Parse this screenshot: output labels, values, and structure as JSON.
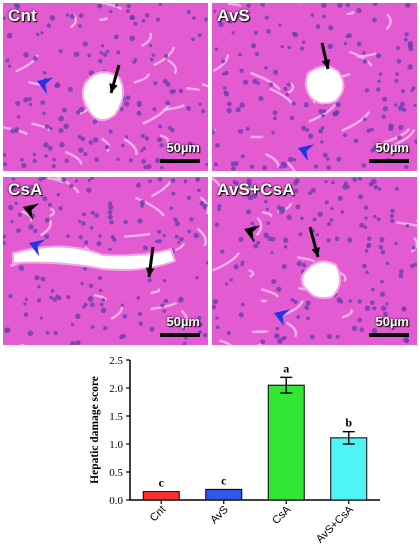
{
  "panels": [
    {
      "label": "Cnt",
      "scale": "50µm"
    },
    {
      "label": "AvS",
      "scale": "50µm"
    },
    {
      "label": "CsA",
      "scale": "50µm"
    },
    {
      "label": "AvS+CsA",
      "scale": "50µm"
    }
  ],
  "colors": {
    "tissue": "#e25bd0",
    "nucleus": "#6a3fb0",
    "arrow_black": "#000000",
    "arrow_blue": "#1f36e6"
  },
  "chart_data": {
    "type": "bar",
    "ylabel": "Hepatic damage score",
    "ylim": [
      0,
      2.5
    ],
    "yticks": [
      "0.0",
      "0.5",
      "1.0",
      "1.5",
      "2.0",
      "2.5"
    ],
    "categories": [
      "Cnt",
      "AvS",
      "CsA",
      "AvS+CsA"
    ],
    "values": [
      0.15,
      0.19,
      2.05,
      1.11
    ],
    "errors": [
      0.0,
      0.0,
      0.14,
      0.11
    ],
    "colors": [
      "#ff3030",
      "#2f57e8",
      "#33e633",
      "#4ff5f5"
    ],
    "letters": [
      "c",
      "c",
      "a",
      "b"
    ]
  }
}
